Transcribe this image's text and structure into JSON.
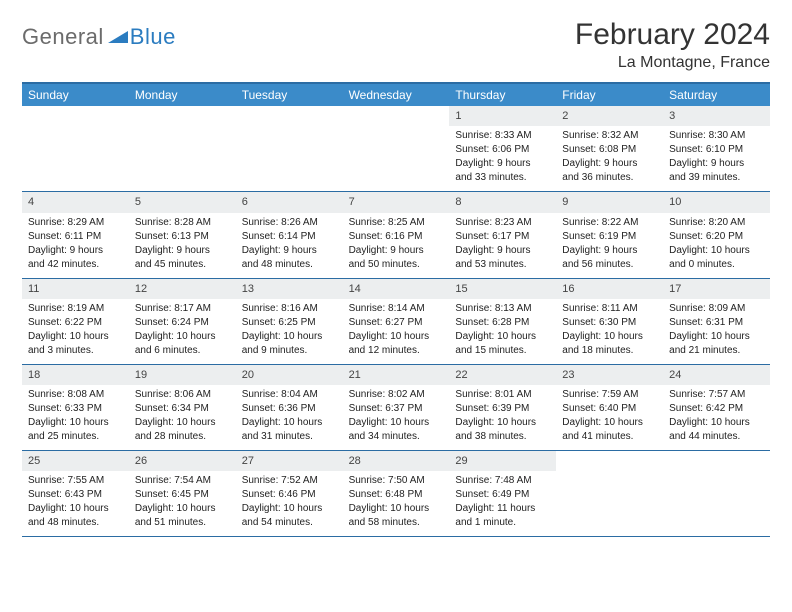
{
  "logo": {
    "general": "General",
    "blue": "Blue"
  },
  "title": "February 2024",
  "location": "La Montagne, France",
  "colors": {
    "header_bar": "#3b8bc9",
    "week_border": "#2b6ca3",
    "daynum_bg": "#eceeef",
    "logo_gray": "#6b6b6b",
    "logo_blue": "#2b7cc0"
  },
  "day_names": [
    "Sunday",
    "Monday",
    "Tuesday",
    "Wednesday",
    "Thursday",
    "Friday",
    "Saturday"
  ],
  "weeks": [
    [
      null,
      null,
      null,
      null,
      {
        "n": "1",
        "sr": "Sunrise: 8:33 AM",
        "ss": "Sunset: 6:06 PM",
        "dl1": "Daylight: 9 hours",
        "dl2": "and 33 minutes."
      },
      {
        "n": "2",
        "sr": "Sunrise: 8:32 AM",
        "ss": "Sunset: 6:08 PM",
        "dl1": "Daylight: 9 hours",
        "dl2": "and 36 minutes."
      },
      {
        "n": "3",
        "sr": "Sunrise: 8:30 AM",
        "ss": "Sunset: 6:10 PM",
        "dl1": "Daylight: 9 hours",
        "dl2": "and 39 minutes."
      }
    ],
    [
      {
        "n": "4",
        "sr": "Sunrise: 8:29 AM",
        "ss": "Sunset: 6:11 PM",
        "dl1": "Daylight: 9 hours",
        "dl2": "and 42 minutes."
      },
      {
        "n": "5",
        "sr": "Sunrise: 8:28 AM",
        "ss": "Sunset: 6:13 PM",
        "dl1": "Daylight: 9 hours",
        "dl2": "and 45 minutes."
      },
      {
        "n": "6",
        "sr": "Sunrise: 8:26 AM",
        "ss": "Sunset: 6:14 PM",
        "dl1": "Daylight: 9 hours",
        "dl2": "and 48 minutes."
      },
      {
        "n": "7",
        "sr": "Sunrise: 8:25 AM",
        "ss": "Sunset: 6:16 PM",
        "dl1": "Daylight: 9 hours",
        "dl2": "and 50 minutes."
      },
      {
        "n": "8",
        "sr": "Sunrise: 8:23 AM",
        "ss": "Sunset: 6:17 PM",
        "dl1": "Daylight: 9 hours",
        "dl2": "and 53 minutes."
      },
      {
        "n": "9",
        "sr": "Sunrise: 8:22 AM",
        "ss": "Sunset: 6:19 PM",
        "dl1": "Daylight: 9 hours",
        "dl2": "and 56 minutes."
      },
      {
        "n": "10",
        "sr": "Sunrise: 8:20 AM",
        "ss": "Sunset: 6:20 PM",
        "dl1": "Daylight: 10 hours",
        "dl2": "and 0 minutes."
      }
    ],
    [
      {
        "n": "11",
        "sr": "Sunrise: 8:19 AM",
        "ss": "Sunset: 6:22 PM",
        "dl1": "Daylight: 10 hours",
        "dl2": "and 3 minutes."
      },
      {
        "n": "12",
        "sr": "Sunrise: 8:17 AM",
        "ss": "Sunset: 6:24 PM",
        "dl1": "Daylight: 10 hours",
        "dl2": "and 6 minutes."
      },
      {
        "n": "13",
        "sr": "Sunrise: 8:16 AM",
        "ss": "Sunset: 6:25 PM",
        "dl1": "Daylight: 10 hours",
        "dl2": "and 9 minutes."
      },
      {
        "n": "14",
        "sr": "Sunrise: 8:14 AM",
        "ss": "Sunset: 6:27 PM",
        "dl1": "Daylight: 10 hours",
        "dl2": "and 12 minutes."
      },
      {
        "n": "15",
        "sr": "Sunrise: 8:13 AM",
        "ss": "Sunset: 6:28 PM",
        "dl1": "Daylight: 10 hours",
        "dl2": "and 15 minutes."
      },
      {
        "n": "16",
        "sr": "Sunrise: 8:11 AM",
        "ss": "Sunset: 6:30 PM",
        "dl1": "Daylight: 10 hours",
        "dl2": "and 18 minutes."
      },
      {
        "n": "17",
        "sr": "Sunrise: 8:09 AM",
        "ss": "Sunset: 6:31 PM",
        "dl1": "Daylight: 10 hours",
        "dl2": "and 21 minutes."
      }
    ],
    [
      {
        "n": "18",
        "sr": "Sunrise: 8:08 AM",
        "ss": "Sunset: 6:33 PM",
        "dl1": "Daylight: 10 hours",
        "dl2": "and 25 minutes."
      },
      {
        "n": "19",
        "sr": "Sunrise: 8:06 AM",
        "ss": "Sunset: 6:34 PM",
        "dl1": "Daylight: 10 hours",
        "dl2": "and 28 minutes."
      },
      {
        "n": "20",
        "sr": "Sunrise: 8:04 AM",
        "ss": "Sunset: 6:36 PM",
        "dl1": "Daylight: 10 hours",
        "dl2": "and 31 minutes."
      },
      {
        "n": "21",
        "sr": "Sunrise: 8:02 AM",
        "ss": "Sunset: 6:37 PM",
        "dl1": "Daylight: 10 hours",
        "dl2": "and 34 minutes."
      },
      {
        "n": "22",
        "sr": "Sunrise: 8:01 AM",
        "ss": "Sunset: 6:39 PM",
        "dl1": "Daylight: 10 hours",
        "dl2": "and 38 minutes."
      },
      {
        "n": "23",
        "sr": "Sunrise: 7:59 AM",
        "ss": "Sunset: 6:40 PM",
        "dl1": "Daylight: 10 hours",
        "dl2": "and 41 minutes."
      },
      {
        "n": "24",
        "sr": "Sunrise: 7:57 AM",
        "ss": "Sunset: 6:42 PM",
        "dl1": "Daylight: 10 hours",
        "dl2": "and 44 minutes."
      }
    ],
    [
      {
        "n": "25",
        "sr": "Sunrise: 7:55 AM",
        "ss": "Sunset: 6:43 PM",
        "dl1": "Daylight: 10 hours",
        "dl2": "and 48 minutes."
      },
      {
        "n": "26",
        "sr": "Sunrise: 7:54 AM",
        "ss": "Sunset: 6:45 PM",
        "dl1": "Daylight: 10 hours",
        "dl2": "and 51 minutes."
      },
      {
        "n": "27",
        "sr": "Sunrise: 7:52 AM",
        "ss": "Sunset: 6:46 PM",
        "dl1": "Daylight: 10 hours",
        "dl2": "and 54 minutes."
      },
      {
        "n": "28",
        "sr": "Sunrise: 7:50 AM",
        "ss": "Sunset: 6:48 PM",
        "dl1": "Daylight: 10 hours",
        "dl2": "and 58 minutes."
      },
      {
        "n": "29",
        "sr": "Sunrise: 7:48 AM",
        "ss": "Sunset: 6:49 PM",
        "dl1": "Daylight: 11 hours",
        "dl2": "and 1 minute."
      },
      null,
      null
    ]
  ]
}
